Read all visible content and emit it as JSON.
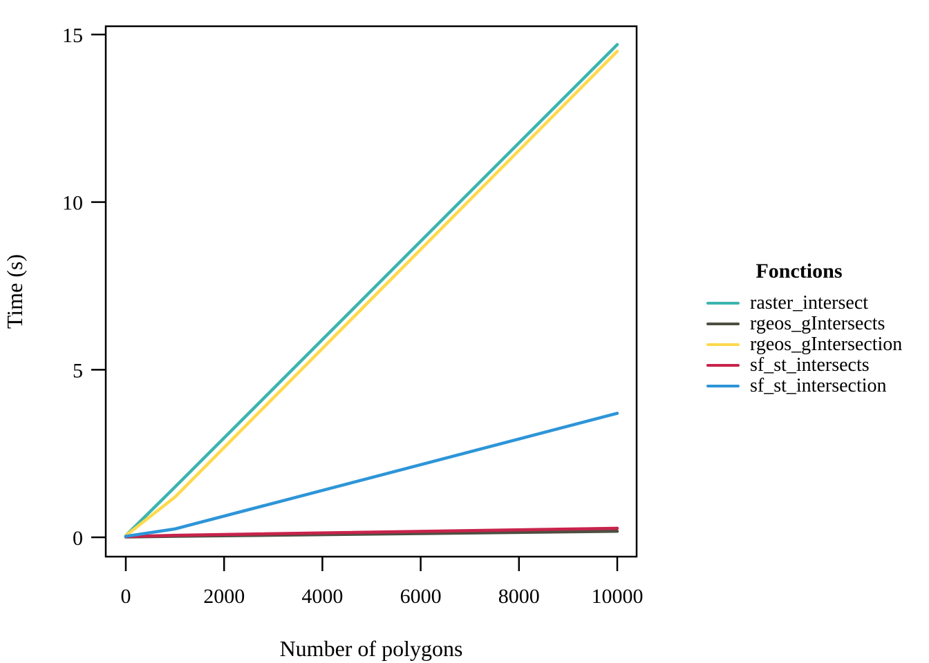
{
  "figure": {
    "background": "#ffffff",
    "axis_color": "#000000",
    "text_color": "#000000"
  },
  "chart_data": {
    "type": "line",
    "title": "",
    "xlabel": "Number of polygons",
    "ylabel": "Time (s)",
    "xlim": [
      0,
      10000
    ],
    "ylim": [
      0,
      15
    ],
    "x_ticks": [
      0,
      2000,
      4000,
      6000,
      8000,
      10000
    ],
    "y_ticks": [
      0,
      5,
      10,
      15
    ],
    "grid": false,
    "legend_title": "Fonctions",
    "legend_position": "right",
    "x": [
      0,
      1000,
      10000
    ],
    "series": [
      {
        "name": "raster_intersect",
        "color": "#3CB4AF",
        "values": [
          0.05,
          1.5,
          14.7
        ]
      },
      {
        "name": "rgeos_gIntersects",
        "color": "#4D4F41",
        "values": [
          0.01,
          0.03,
          0.18
        ]
      },
      {
        "name": "rgeos_gIntersection",
        "color": "#FFD94D",
        "values": [
          0.05,
          1.2,
          14.5
        ]
      },
      {
        "name": "sf_st_intersects",
        "color": "#C8234B",
        "values": [
          0.02,
          0.06,
          0.27
        ]
      },
      {
        "name": "sf_st_intersection",
        "color": "#2D95D8",
        "values": [
          0.03,
          0.25,
          3.7
        ]
      }
    ]
  }
}
